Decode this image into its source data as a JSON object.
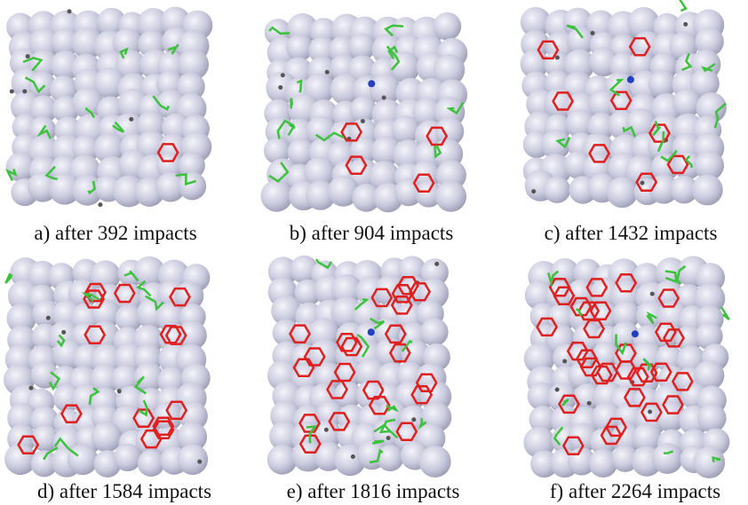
{
  "panels": [
    {
      "caption": "a) after 392 impacts"
    },
    {
      "caption": "b) after 904 impacts"
    },
    {
      "caption": "c) after 1432 impacts"
    },
    {
      "caption": "d) after 1584 impacts"
    },
    {
      "caption": "e) after 1816 impacts"
    },
    {
      "caption": "f) after 2264 impacts"
    }
  ]
}
